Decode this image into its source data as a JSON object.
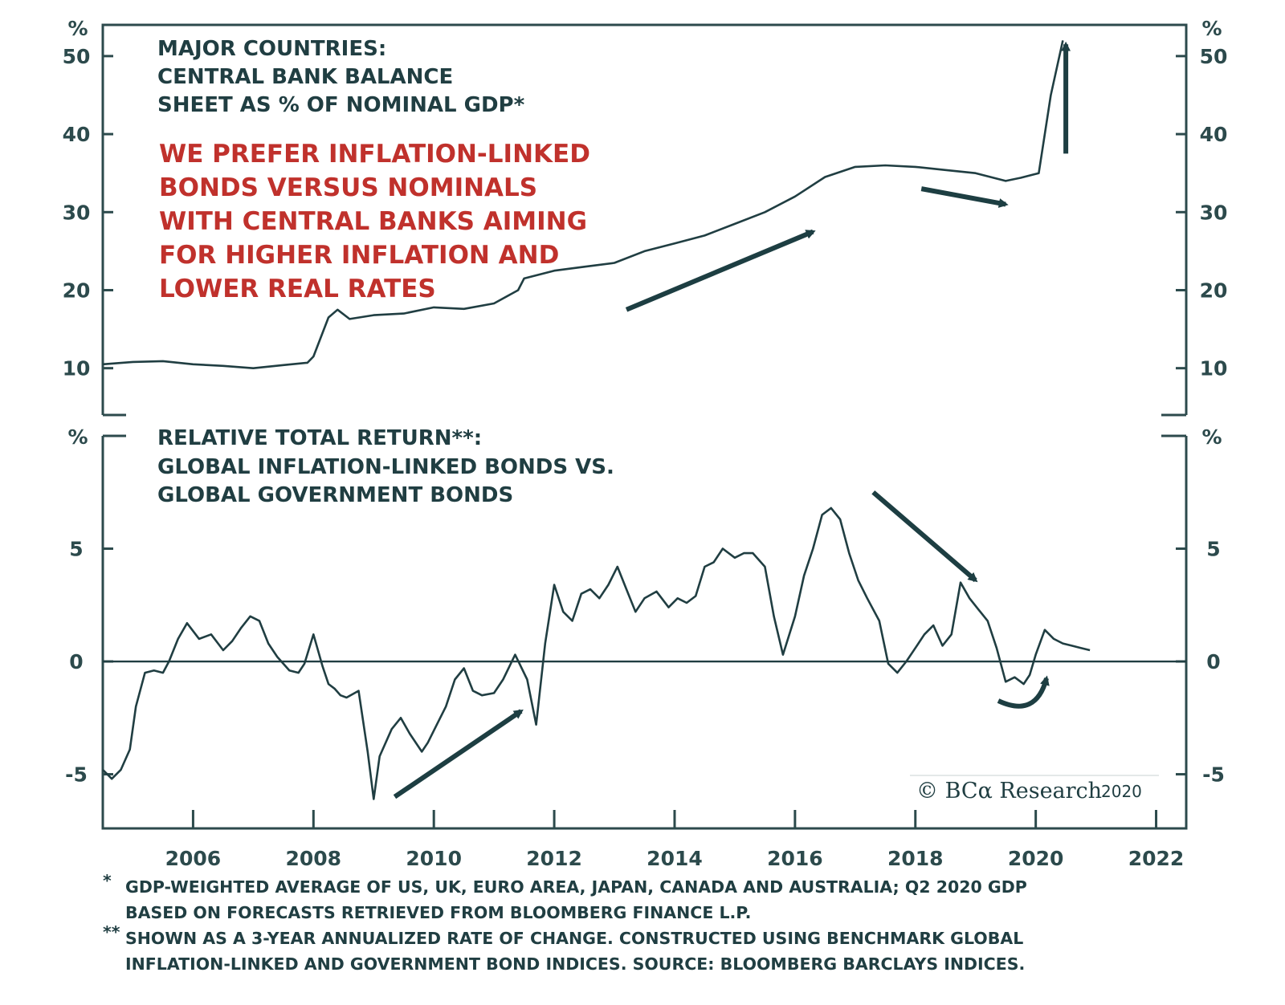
{
  "chart_data": [
    {
      "type": "line",
      "title_lines": [
        "MAJOR COUNTRIES:",
        "CENTRAL BANK BALANCE",
        "SHEET AS % OF NOMINAL GDP*"
      ],
      "annotation_lines": [
        "WE PREFER INFLATION-LINKED",
        "BONDS VERSUS NOMINALS",
        "WITH CENTRAL BANKS AIMING",
        "FOR HIGHER INFLATION AND",
        "LOWER REAL RATES"
      ],
      "unit_left": "%",
      "unit_right": "%",
      "ylim": [
        4,
        54
      ],
      "yticks": [
        10,
        20,
        30,
        40,
        50
      ],
      "xlim": [
        2004.5,
        2022.5
      ],
      "x": [
        2004.5,
        2005.0,
        2005.5,
        2006.0,
        2006.5,
        2007.0,
        2007.5,
        2007.9,
        2008.0,
        2008.25,
        2008.4,
        2008.6,
        2009.0,
        2009.5,
        2010.0,
        2010.5,
        2011.0,
        2011.4,
        2011.5,
        2012.0,
        2012.5,
        2013.0,
        2013.5,
        2014.0,
        2014.5,
        2015.0,
        2015.5,
        2016.0,
        2016.5,
        2017.0,
        2017.5,
        2018.0,
        2018.5,
        2019.0,
        2019.5,
        2019.75,
        2019.95,
        2020.05,
        2020.25,
        2020.45
      ],
      "values": [
        10.5,
        10.8,
        10.9,
        10.5,
        10.3,
        10.0,
        10.4,
        10.7,
        11.5,
        16.5,
        17.5,
        16.3,
        16.8,
        17.0,
        17.8,
        17.6,
        18.3,
        20.0,
        21.5,
        22.5,
        23.0,
        23.5,
        25.0,
        26.0,
        27.0,
        28.5,
        30.0,
        32.0,
        34.5,
        35.8,
        36.0,
        35.8,
        35.4,
        35.0,
        34.0,
        34.4,
        34.8,
        35.0,
        45.0,
        52.0
      ],
      "arrows": [
        {
          "from": [
            2013.2,
            17.5
          ],
          "to": [
            2016.3,
            27.5
          ]
        },
        {
          "from": [
            2018.1,
            33.0
          ],
          "to": [
            2019.5,
            31.0
          ]
        },
        {
          "from": [
            2020.5,
            37.5
          ],
          "to": [
            2020.5,
            51.5
          ]
        }
      ]
    },
    {
      "type": "line",
      "title_lines": [
        "RELATIVE TOTAL RETURN**:",
        "GLOBAL INFLATION-LINKED BONDS VS.",
        "GLOBAL GOVERNMENT BONDS"
      ],
      "unit_left": "%",
      "unit_right": "%",
      "ylim": [
        -7.4,
        10
      ],
      "yticks": [
        5,
        0,
        -5
      ],
      "xlim": [
        2004.5,
        2022.5
      ],
      "xticks": [
        2006,
        2008,
        2010,
        2012,
        2014,
        2016,
        2018,
        2020,
        2022
      ],
      "zero_line": true,
      "x": [
        2004.5,
        2004.65,
        2004.8,
        2004.95,
        2005.05,
        2005.2,
        2005.35,
        2005.5,
        2005.6,
        2005.75,
        2005.9,
        2006.1,
        2006.3,
        2006.5,
        2006.65,
        2006.8,
        2006.95,
        2007.1,
        2007.25,
        2007.4,
        2007.6,
        2007.75,
        2007.85,
        2008.0,
        2008.15,
        2008.25,
        2008.35,
        2008.45,
        2008.55,
        2008.75,
        2008.9,
        2009.0,
        2009.1,
        2009.3,
        2009.45,
        2009.6,
        2009.8,
        2009.9,
        2010.05,
        2010.2,
        2010.35,
        2010.5,
        2010.65,
        2010.8,
        2011.0,
        2011.15,
        2011.35,
        2011.55,
        2011.7,
        2011.85,
        2012.0,
        2012.15,
        2012.3,
        2012.45,
        2012.6,
        2012.75,
        2012.9,
        2013.05,
        2013.2,
        2013.35,
        2013.5,
        2013.7,
        2013.9,
        2014.05,
        2014.2,
        2014.35,
        2014.5,
        2014.65,
        2014.8,
        2015.0,
        2015.15,
        2015.3,
        2015.5,
        2015.65,
        2015.8,
        2016.0,
        2016.15,
        2016.3,
        2016.45,
        2016.6,
        2016.75,
        2016.9,
        2017.05,
        2017.2,
        2017.4,
        2017.55,
        2017.7,
        2017.85,
        2018.0,
        2018.15,
        2018.3,
        2018.45,
        2018.6,
        2018.75,
        2018.9,
        2019.05,
        2019.2,
        2019.35,
        2019.5,
        2019.65,
        2019.8,
        2019.9,
        2020.0,
        2020.15,
        2020.3,
        2020.45,
        2020.6,
        2020.75,
        2020.9
      ],
      "values": [
        -4.8,
        -5.2,
        -4.8,
        -3.9,
        -2.0,
        -0.5,
        -0.4,
        -0.5,
        0.0,
        1.0,
        1.7,
        1.0,
        1.2,
        0.5,
        0.9,
        1.5,
        2.0,
        1.8,
        0.8,
        0.2,
        -0.4,
        -0.5,
        -0.1,
        1.2,
        -0.2,
        -1.0,
        -1.2,
        -1.5,
        -1.6,
        -1.3,
        -4.0,
        -6.1,
        -4.2,
        -3.0,
        -2.5,
        -3.2,
        -4.0,
        -3.6,
        -2.8,
        -2.0,
        -0.8,
        -0.3,
        -1.3,
        -1.5,
        -1.4,
        -0.8,
        0.3,
        -0.8,
        -2.8,
        0.8,
        3.4,
        2.2,
        1.8,
        3.0,
        3.2,
        2.8,
        3.4,
        4.2,
        3.2,
        2.2,
        2.8,
        3.1,
        2.4,
        2.8,
        2.6,
        2.9,
        4.2,
        4.4,
        5.0,
        4.6,
        4.8,
        4.8,
        4.2,
        2.0,
        0.3,
        2.0,
        3.8,
        5.0,
        6.5,
        6.8,
        6.3,
        4.8,
        3.6,
        2.8,
        1.8,
        -0.1,
        -0.5,
        0.0,
        0.6,
        1.2,
        1.6,
        0.7,
        1.2,
        3.5,
        2.8,
        2.3,
        1.8,
        0.6,
        -0.9,
        -0.7,
        -1.0,
        -0.6,
        0.3,
        1.4,
        1.0,
        0.8,
        0.7,
        0.6,
        0.5
      ],
      "arrows": [
        {
          "from": [
            2017.3,
            7.5
          ],
          "to": [
            2019.0,
            3.6
          ]
        },
        {
          "from": [
            2009.35,
            -6.0
          ],
          "to": [
            2011.45,
            -2.2
          ]
        }
      ],
      "credit": "© BCα Research",
      "credit_year": "2020"
    }
  ],
  "footnotes": [
    {
      "mark": "*",
      "lines": [
        "GDP-WEIGHTED AVERAGE OF US, UK, EURO AREA, JAPAN, CANADA AND AUSTRALIA; Q2 2020 GDP",
        "BASED ON FORECASTS RETRIEVED FROM BLOOMBERG FINANCE L.P."
      ]
    },
    {
      "mark": "**",
      "lines": [
        "SHOWN AS A 3-YEAR ANNUALIZED RATE OF CHANGE. CONSTRUCTED USING BENCHMARK GLOBAL",
        "INFLATION-LINKED AND GOVERNMENT BOND INDICES. SOURCE: BLOOMBERG BARCLAYS INDICES."
      ]
    }
  ],
  "colors": {
    "line": "#203e42",
    "axis": "#2c4a4c",
    "arrow": "#1d3e42",
    "note": "#c0312c"
  }
}
